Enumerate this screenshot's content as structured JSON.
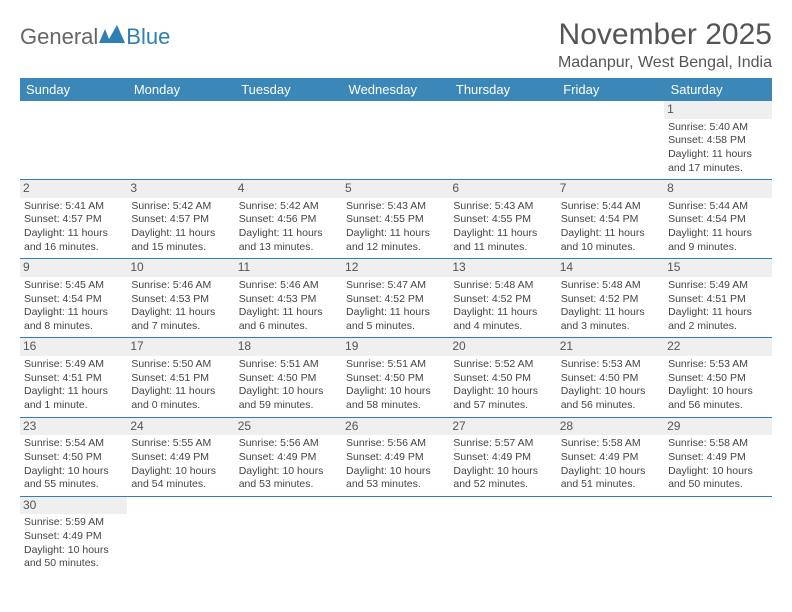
{
  "brand": {
    "part1": "General",
    "part2": "Blue"
  },
  "title": "November 2025",
  "location": "Madanpur, West Bengal, India",
  "colors": {
    "header_bg": "#3b87b8",
    "header_text": "#ffffff",
    "date_bg": "#efefef",
    "row_divider": "#2f7fb5",
    "cell_top_border": "#c8c8c8",
    "text": "#444444",
    "brand_blue": "#2f7fb5",
    "brand_gray": "#666666"
  },
  "typography": {
    "title_fontsize": 30,
    "location_fontsize": 16,
    "header_fontsize": 13,
    "cell_fontsize": 10.5,
    "date_fontsize": 12
  },
  "day_headers": [
    "Sunday",
    "Monday",
    "Tuesday",
    "Wednesday",
    "Thursday",
    "Friday",
    "Saturday"
  ],
  "weeks": [
    [
      {
        "empty": true
      },
      {
        "empty": true
      },
      {
        "empty": true
      },
      {
        "empty": true
      },
      {
        "empty": true
      },
      {
        "empty": true
      },
      {
        "date": "1",
        "sunrise": "Sunrise: 5:40 AM",
        "sunset": "Sunset: 4:58 PM",
        "daylight": "Daylight: 11 hours and 17 minutes."
      }
    ],
    [
      {
        "date": "2",
        "sunrise": "Sunrise: 5:41 AM",
        "sunset": "Sunset: 4:57 PM",
        "daylight": "Daylight: 11 hours and 16 minutes."
      },
      {
        "date": "3",
        "sunrise": "Sunrise: 5:42 AM",
        "sunset": "Sunset: 4:57 PM",
        "daylight": "Daylight: 11 hours and 15 minutes."
      },
      {
        "date": "4",
        "sunrise": "Sunrise: 5:42 AM",
        "sunset": "Sunset: 4:56 PM",
        "daylight": "Daylight: 11 hours and 13 minutes."
      },
      {
        "date": "5",
        "sunrise": "Sunrise: 5:43 AM",
        "sunset": "Sunset: 4:55 PM",
        "daylight": "Daylight: 11 hours and 12 minutes."
      },
      {
        "date": "6",
        "sunrise": "Sunrise: 5:43 AM",
        "sunset": "Sunset: 4:55 PM",
        "daylight": "Daylight: 11 hours and 11 minutes."
      },
      {
        "date": "7",
        "sunrise": "Sunrise: 5:44 AM",
        "sunset": "Sunset: 4:54 PM",
        "daylight": "Daylight: 11 hours and 10 minutes."
      },
      {
        "date": "8",
        "sunrise": "Sunrise: 5:44 AM",
        "sunset": "Sunset: 4:54 PM",
        "daylight": "Daylight: 11 hours and 9 minutes."
      }
    ],
    [
      {
        "date": "9",
        "sunrise": "Sunrise: 5:45 AM",
        "sunset": "Sunset: 4:54 PM",
        "daylight": "Daylight: 11 hours and 8 minutes."
      },
      {
        "date": "10",
        "sunrise": "Sunrise: 5:46 AM",
        "sunset": "Sunset: 4:53 PM",
        "daylight": "Daylight: 11 hours and 7 minutes."
      },
      {
        "date": "11",
        "sunrise": "Sunrise: 5:46 AM",
        "sunset": "Sunset: 4:53 PM",
        "daylight": "Daylight: 11 hours and 6 minutes."
      },
      {
        "date": "12",
        "sunrise": "Sunrise: 5:47 AM",
        "sunset": "Sunset: 4:52 PM",
        "daylight": "Daylight: 11 hours and 5 minutes."
      },
      {
        "date": "13",
        "sunrise": "Sunrise: 5:48 AM",
        "sunset": "Sunset: 4:52 PM",
        "daylight": "Daylight: 11 hours and 4 minutes."
      },
      {
        "date": "14",
        "sunrise": "Sunrise: 5:48 AM",
        "sunset": "Sunset: 4:52 PM",
        "daylight": "Daylight: 11 hours and 3 minutes."
      },
      {
        "date": "15",
        "sunrise": "Sunrise: 5:49 AM",
        "sunset": "Sunset: 4:51 PM",
        "daylight": "Daylight: 11 hours and 2 minutes."
      }
    ],
    [
      {
        "date": "16",
        "sunrise": "Sunrise: 5:49 AM",
        "sunset": "Sunset: 4:51 PM",
        "daylight": "Daylight: 11 hours and 1 minute."
      },
      {
        "date": "17",
        "sunrise": "Sunrise: 5:50 AM",
        "sunset": "Sunset: 4:51 PM",
        "daylight": "Daylight: 11 hours and 0 minutes."
      },
      {
        "date": "18",
        "sunrise": "Sunrise: 5:51 AM",
        "sunset": "Sunset: 4:50 PM",
        "daylight": "Daylight: 10 hours and 59 minutes."
      },
      {
        "date": "19",
        "sunrise": "Sunrise: 5:51 AM",
        "sunset": "Sunset: 4:50 PM",
        "daylight": "Daylight: 10 hours and 58 minutes."
      },
      {
        "date": "20",
        "sunrise": "Sunrise: 5:52 AM",
        "sunset": "Sunset: 4:50 PM",
        "daylight": "Daylight: 10 hours and 57 minutes."
      },
      {
        "date": "21",
        "sunrise": "Sunrise: 5:53 AM",
        "sunset": "Sunset: 4:50 PM",
        "daylight": "Daylight: 10 hours and 56 minutes."
      },
      {
        "date": "22",
        "sunrise": "Sunrise: 5:53 AM",
        "sunset": "Sunset: 4:50 PM",
        "daylight": "Daylight: 10 hours and 56 minutes."
      }
    ],
    [
      {
        "date": "23",
        "sunrise": "Sunrise: 5:54 AM",
        "sunset": "Sunset: 4:50 PM",
        "daylight": "Daylight: 10 hours and 55 minutes."
      },
      {
        "date": "24",
        "sunrise": "Sunrise: 5:55 AM",
        "sunset": "Sunset: 4:49 PM",
        "daylight": "Daylight: 10 hours and 54 minutes."
      },
      {
        "date": "25",
        "sunrise": "Sunrise: 5:56 AM",
        "sunset": "Sunset: 4:49 PM",
        "daylight": "Daylight: 10 hours and 53 minutes."
      },
      {
        "date": "26",
        "sunrise": "Sunrise: 5:56 AM",
        "sunset": "Sunset: 4:49 PM",
        "daylight": "Daylight: 10 hours and 53 minutes."
      },
      {
        "date": "27",
        "sunrise": "Sunrise: 5:57 AM",
        "sunset": "Sunset: 4:49 PM",
        "daylight": "Daylight: 10 hours and 52 minutes."
      },
      {
        "date": "28",
        "sunrise": "Sunrise: 5:58 AM",
        "sunset": "Sunset: 4:49 PM",
        "daylight": "Daylight: 10 hours and 51 minutes."
      },
      {
        "date": "29",
        "sunrise": "Sunrise: 5:58 AM",
        "sunset": "Sunset: 4:49 PM",
        "daylight": "Daylight: 10 hours and 50 minutes."
      }
    ],
    [
      {
        "date": "30",
        "sunrise": "Sunrise: 5:59 AM",
        "sunset": "Sunset: 4:49 PM",
        "daylight": "Daylight: 10 hours and 50 minutes."
      },
      {
        "empty": true
      },
      {
        "empty": true
      },
      {
        "empty": true
      },
      {
        "empty": true
      },
      {
        "empty": true
      },
      {
        "empty": true
      }
    ]
  ]
}
